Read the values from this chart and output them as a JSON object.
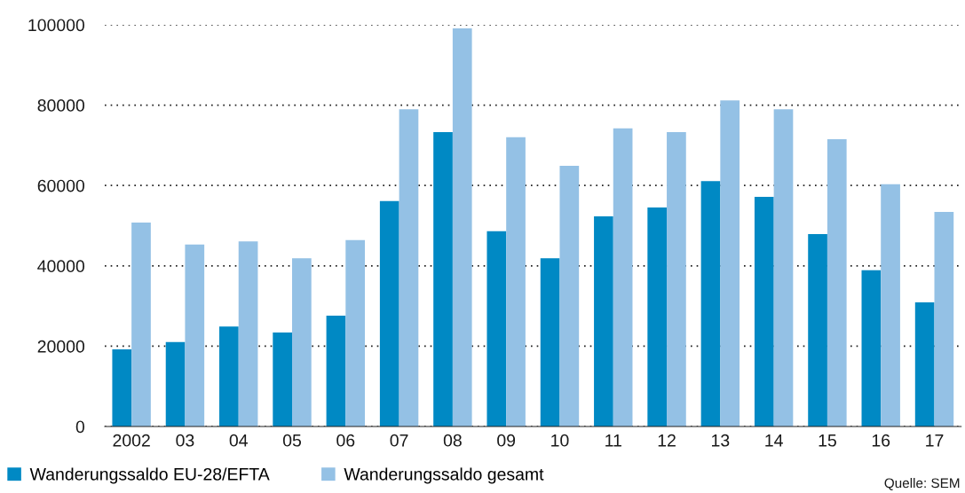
{
  "chart_data": {
    "type": "bar",
    "categories": [
      "2002",
      "03",
      "04",
      "05",
      "06",
      "07",
      "08",
      "09",
      "10",
      "11",
      "12",
      "13",
      "14",
      "15",
      "16",
      "17"
    ],
    "series": [
      {
        "name": "Wanderungssaldo EU-28/EFTA",
        "color": "#0089c4",
        "values": [
          19200,
          21000,
          24900,
          23400,
          27600,
          56100,
          73300,
          48600,
          41900,
          52300,
          54500,
          61100,
          57200,
          47900,
          38900,
          30900
        ]
      },
      {
        "name": "Wanderungssaldo gesamt",
        "color": "#94c1e5",
        "values": [
          50800,
          45300,
          46100,
          41900,
          46400,
          79000,
          99100,
          72000,
          64900,
          74200,
          73300,
          81200,
          79000,
          71500,
          60300,
          53400
        ]
      }
    ],
    "ylim": [
      0,
      100000
    ],
    "yticks": [
      0,
      20000,
      40000,
      60000,
      80000,
      100000
    ],
    "grid": "y",
    "legend": "bottom left",
    "annotations": [
      "Quelle: SEM"
    ]
  }
}
